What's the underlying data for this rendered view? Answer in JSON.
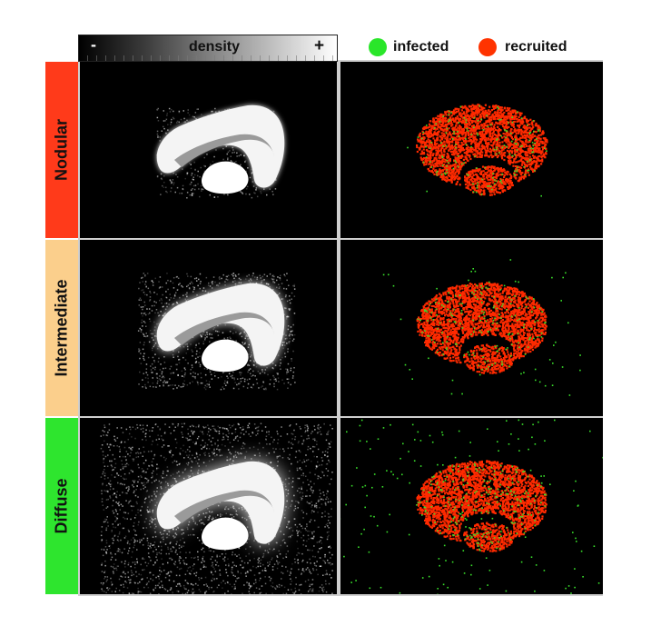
{
  "colorbar": {
    "label": "density",
    "min_symbol": "-",
    "max_symbol": "+",
    "colors": [
      "#000000",
      "#ffffff"
    ]
  },
  "legend": {
    "items": [
      {
        "label": "infected",
        "color": "#2ae62a"
      },
      {
        "label": "recruited",
        "color": "#ff3300"
      }
    ]
  },
  "rows": [
    {
      "label": "Nodular",
      "color": "#ff3a1a",
      "spread": 0.08,
      "infected_density": 0.12
    },
    {
      "label": "Intermediate",
      "color": "#fbcf8c",
      "spread": 0.35,
      "infected_density": 0.22
    },
    {
      "label": "Diffuse",
      "color": "#2ee52e",
      "spread": 0.9,
      "infected_density": 0.45
    }
  ]
}
